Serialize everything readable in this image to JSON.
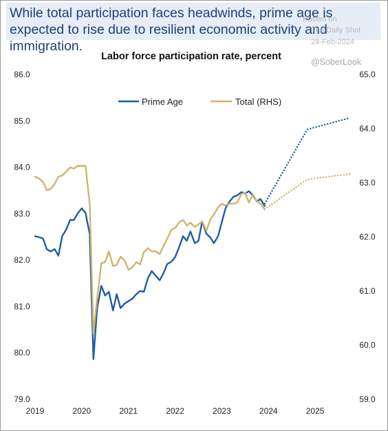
{
  "headline": "While total participation faces headwinds, prime age is expected to rise due to resilient economic activity and immigration.",
  "watermark": {
    "posted_on": "Posted on",
    "source": "The Daily Shot",
    "date": "28-Feb-2024",
    "handle": "@SoberLook"
  },
  "colors": {
    "prime_age": "#1f5ca4",
    "total": "#cfb46f",
    "headline": "#1d3f7a",
    "header_band": "#e6edf6"
  },
  "chart_data": {
    "type": "line",
    "title": "Labor force participation rate, percent",
    "xlabel": "",
    "ylabel": "",
    "x_ticks": [
      "2019",
      "2020",
      "2021",
      "2022",
      "2023",
      "2024",
      "2025"
    ],
    "xlim": [
      2019.0,
      2025.75
    ],
    "ylim_left": [
      79.0,
      86.0
    ],
    "ylim_right": [
      59.0,
      65.0
    ],
    "y_ticks_left": [
      "86.0",
      "85.0",
      "84.0",
      "83.0",
      "82.0",
      "81.0",
      "80.0",
      "79.0"
    ],
    "y_ticks_right": [
      "65.0",
      "64.0",
      "63.0",
      "62.0",
      "61.0",
      "60.0",
      "59.0"
    ],
    "grid": false,
    "legend_placement": "top-center",
    "series": [
      {
        "name": "Prime Age",
        "axis": "left",
        "style": "solid",
        "x": [
          2019.0,
          2019.08,
          2019.17,
          2019.25,
          2019.33,
          2019.42,
          2019.5,
          2019.58,
          2019.67,
          2019.75,
          2019.83,
          2019.92,
          2020.0,
          2020.08,
          2020.17,
          2020.25,
          2020.33,
          2020.42,
          2020.5,
          2020.58,
          2020.67,
          2020.75,
          2020.83,
          2020.92,
          2021.0,
          2021.08,
          2021.17,
          2021.25,
          2021.33,
          2021.42,
          2021.5,
          2021.58,
          2021.67,
          2021.75,
          2021.83,
          2021.92,
          2022.0,
          2022.08,
          2022.17,
          2022.25,
          2022.33,
          2022.42,
          2022.5,
          2022.58,
          2022.67,
          2022.75,
          2022.83,
          2022.92,
          2023.0,
          2023.08,
          2023.17,
          2023.25,
          2023.33,
          2023.42,
          2023.5,
          2023.58,
          2023.67,
          2023.75,
          2023.83,
          2023.92
        ],
        "values": [
          82.5,
          82.48,
          82.45,
          82.22,
          82.17,
          82.22,
          82.08,
          82.5,
          82.65,
          82.85,
          82.85,
          83.0,
          83.1,
          83.0,
          82.55,
          79.85,
          80.95,
          81.43,
          81.22,
          81.3,
          80.9,
          81.25,
          80.95,
          81.05,
          81.1,
          81.15,
          81.25,
          81.32,
          81.3,
          81.6,
          81.75,
          81.65,
          81.55,
          81.7,
          81.9,
          81.95,
          82.05,
          82.25,
          82.5,
          82.4,
          82.6,
          82.35,
          82.4,
          82.82,
          82.55,
          82.48,
          82.35,
          82.5,
          82.8,
          83.1,
          83.25,
          83.35,
          83.38,
          83.45,
          83.42,
          83.47,
          83.38,
          83.25,
          83.3,
          83.15
        ]
      },
      {
        "name": "Total (RHS)",
        "axis": "right",
        "style": "solid",
        "x": [
          2019.0,
          2019.08,
          2019.17,
          2019.25,
          2019.33,
          2019.42,
          2019.5,
          2019.58,
          2019.67,
          2019.75,
          2019.83,
          2019.92,
          2020.0,
          2020.08,
          2020.17,
          2020.25,
          2020.33,
          2020.42,
          2020.5,
          2020.58,
          2020.67,
          2020.75,
          2020.83,
          2020.92,
          2021.0,
          2021.08,
          2021.17,
          2021.25,
          2021.33,
          2021.42,
          2021.5,
          2021.58,
          2021.67,
          2021.75,
          2021.83,
          2021.92,
          2022.0,
          2022.08,
          2022.17,
          2022.25,
          2022.33,
          2022.42,
          2022.5,
          2022.58,
          2022.67,
          2022.75,
          2022.83,
          2022.92,
          2023.0,
          2023.08,
          2023.17,
          2023.25,
          2023.33,
          2023.42,
          2023.5,
          2023.58,
          2023.67,
          2023.75,
          2023.83,
          2023.92
        ],
        "values": [
          63.1,
          63.07,
          63.0,
          62.85,
          62.87,
          62.97,
          63.1,
          63.12,
          63.2,
          63.27,
          63.25,
          63.3,
          63.3,
          63.3,
          62.6,
          60.2,
          60.85,
          61.5,
          61.52,
          61.72,
          61.45,
          61.47,
          61.62,
          61.55,
          61.38,
          61.42,
          61.52,
          61.48,
          61.7,
          61.78,
          61.72,
          61.72,
          61.67,
          61.82,
          61.95,
          62.12,
          62.15,
          62.25,
          62.3,
          62.2,
          62.25,
          62.17,
          62.22,
          62.27,
          62.1,
          62.3,
          62.4,
          62.53,
          62.6,
          62.57,
          62.6,
          62.6,
          62.62,
          62.78,
          62.8,
          62.62,
          62.77,
          62.65,
          62.6,
          62.5
        ]
      },
      {
        "name": "Prime Age projection",
        "axis": "left",
        "style": "dotted",
        "x": [
          2023.92,
          2024.83,
          2025.75
        ],
        "values": [
          83.2,
          84.8,
          85.05
        ]
      },
      {
        "name": "Total projection",
        "axis": "right",
        "style": "dotted",
        "x": [
          2023.92,
          2024.83,
          2025.75
        ],
        "values": [
          62.5,
          63.05,
          63.15
        ]
      }
    ],
    "legend": [
      "Prime Age",
      "Total (RHS)"
    ]
  }
}
